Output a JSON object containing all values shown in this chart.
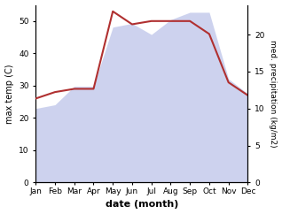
{
  "months": [
    "Jan",
    "Feb",
    "Mar",
    "Apr",
    "May",
    "Jun",
    "Jul",
    "Aug",
    "Sep",
    "Oct",
    "Nov",
    "Dec"
  ],
  "temp_C": [
    26,
    28,
    29,
    29,
    53,
    49,
    50,
    50,
    50,
    46,
    31,
    27
  ],
  "precip_kgm2": [
    10,
    10.5,
    13,
    13,
    21,
    21.5,
    20,
    22,
    23,
    23,
    14,
    12
  ],
  "temp_color": "#b03030",
  "precip_fill_color": "#b8c0e8",
  "ylim_left": [
    0,
    55
  ],
  "ylim_right": [
    0,
    24
  ],
  "yticks_left": [
    0,
    10,
    20,
    30,
    40,
    50
  ],
  "yticks_right": [
    0,
    5,
    10,
    15,
    20
  ],
  "ylabel_left": "max temp (C)",
  "ylabel_right": "med. precipitation (kg/m2)",
  "xlabel": "date (month)",
  "figsize": [
    3.18,
    2.42
  ],
  "dpi": 100,
  "bg_color": "#ffffff"
}
